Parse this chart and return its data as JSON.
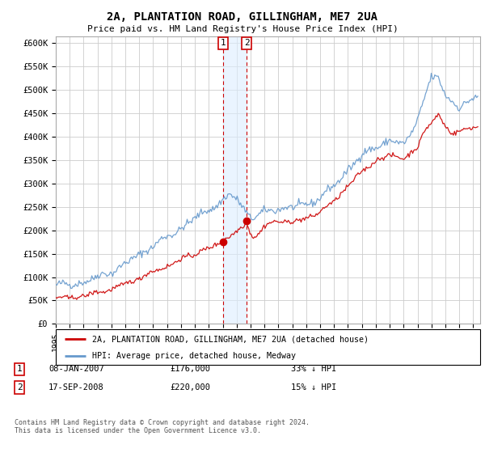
{
  "title": "2A, PLANTATION ROAD, GILLINGHAM, ME7 2UA",
  "subtitle": "Price paid vs. HM Land Registry's House Price Index (HPI)",
  "ylabel_ticks": [
    "£0",
    "£50K",
    "£100K",
    "£150K",
    "£200K",
    "£250K",
    "£300K",
    "£350K",
    "£400K",
    "£450K",
    "£500K",
    "£550K",
    "£600K"
  ],
  "ytick_values": [
    0,
    50000,
    100000,
    150000,
    200000,
    250000,
    300000,
    350000,
    400000,
    450000,
    500000,
    550000,
    600000
  ],
  "ylim": [
    0,
    615000
  ],
  "xlim_start": 1995.0,
  "xlim_end": 2025.5,
  "purchase1": {
    "date_num": 2007.04,
    "price": 176000,
    "label": "1",
    "date_str": "08-JAN-2007",
    "pct": "33%"
  },
  "purchase2": {
    "date_num": 2008.72,
    "price": 220000,
    "label": "2",
    "date_str": "17-SEP-2008",
    "pct": "15%"
  },
  "legend_property": "2A, PLANTATION ROAD, GILLINGHAM, ME7 2UA (detached house)",
  "legend_hpi": "HPI: Average price, detached house, Medway",
  "footer": "Contains HM Land Registry data © Crown copyright and database right 2024.\nThis data is licensed under the Open Government Licence v3.0.",
  "property_color": "#cc0000",
  "hpi_color": "#6699cc",
  "bg_color": "#ffffff",
  "grid_color": "#cccccc",
  "shade_color": "#ddeeff",
  "vline_color": "#cc0000"
}
